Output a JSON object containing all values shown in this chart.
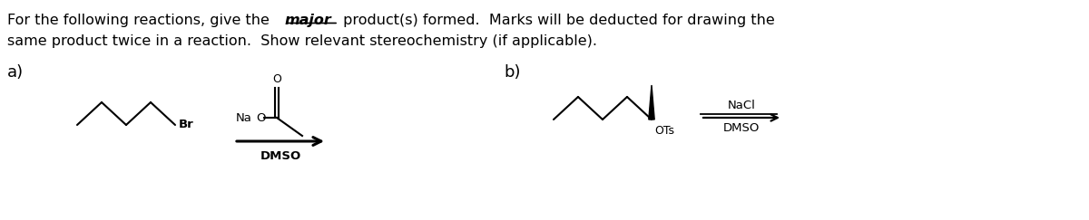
{
  "bg_color": "#ffffff",
  "text_color": "#000000",
  "label_a": "a)",
  "label_b": "b)",
  "font_size_title": 11.5,
  "font_size_label": 13,
  "line1_prefix": "For the following reactions, give the ",
  "line1_major": "major",
  "line1_suffix": " product(s) formed.  Marks will be deducted for drawing the",
  "line2": "same product twice in a reaction.  Show relevant stereochemistry (if applicable).",
  "reagent_a_top": "NaO",
  "reagent_a_bot": "DMSO",
  "reagent_b_top": "NaCl",
  "reagent_b_bot": "DMSO",
  "label_br": "Br",
  "label_o": "O",
  "label_ots": "OTs"
}
